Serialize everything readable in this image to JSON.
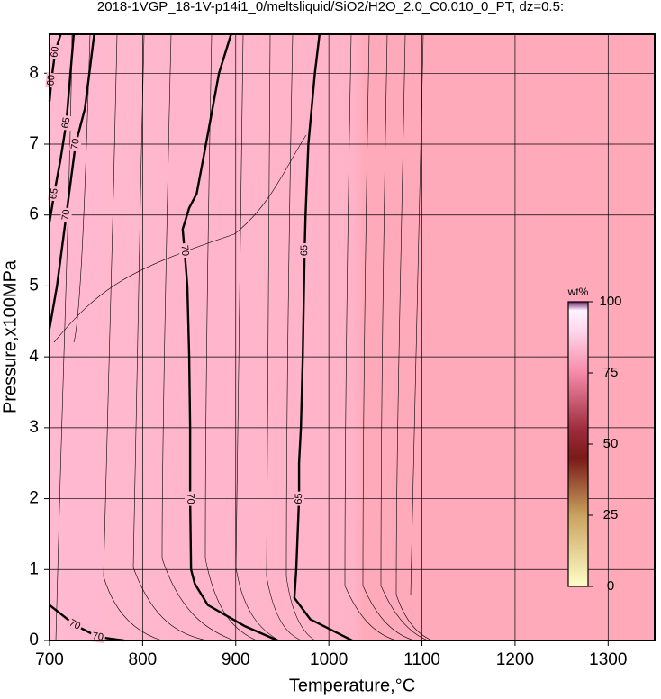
{
  "chart_data": {
    "type": "contour",
    "title": "2018-1VGP_18-1V-p14i1_0/meltsliquid/SiO2/H2O_2.0_C0.010_0_PT, dz=0.5:",
    "x_label": "Temperature,°C",
    "y_label": "Pressure,x100MPa",
    "xlim": [
      700,
      1350
    ],
    "ylim": [
      0,
      8.55
    ],
    "xticks": [
      700,
      800,
      900,
      1000,
      1100,
      1200,
      1300
    ],
    "yticks": [
      0,
      1,
      2,
      3,
      4,
      5,
      6,
      7,
      8
    ],
    "grid": true,
    "contours": [
      {
        "level": 70,
        "x": [
          895,
          882,
          868,
          858,
          850,
          843,
          845,
          848,
          850,
          851,
          851,
          851,
          852,
          856,
          870,
          910,
          945
        ],
        "y": [
          8.55,
          8,
          7,
          6.3,
          6.1,
          5.8,
          5.5,
          5,
          4,
          3,
          2.5,
          2,
          1,
          0.8,
          0.5,
          0.2,
          0
        ]
      },
      {
        "level": 65,
        "x": [
          990,
          985,
          978,
          975,
          974,
          972,
          970,
          968,
          968,
          965,
          963,
          980,
          1025
        ],
        "y": [
          8.55,
          8,
          7,
          6,
          5.5,
          4,
          3,
          2.5,
          2,
          1,
          0.6,
          0.3,
          0
        ]
      },
      {
        "level": 70,
        "x": [
          748,
          738,
          728,
          718,
          708,
          700
        ],
        "y": [
          8.55,
          7.5,
          7,
          6,
          5,
          4.4
        ]
      },
      {
        "level": 65,
        "x": [
          726,
          718,
          712,
          705,
          700
        ],
        "y": [
          8.55,
          7.3,
          6.8,
          6.3,
          5.9
        ]
      },
      {
        "level": 60,
        "x": [
          712,
          706,
          702,
          700
        ],
        "y": [
          8.55,
          8.3,
          7.9,
          7.6
        ]
      },
      {
        "level": 70,
        "x": [
          700,
          727,
          752,
          780
        ],
        "y": [
          0.5,
          0.22,
          0.05,
          0
        ]
      }
    ],
    "colorbar": {
      "title": "wt%",
      "lim": [
        0,
        100
      ],
      "ticks": [
        0,
        25,
        50,
        75,
        100
      ]
    }
  }
}
